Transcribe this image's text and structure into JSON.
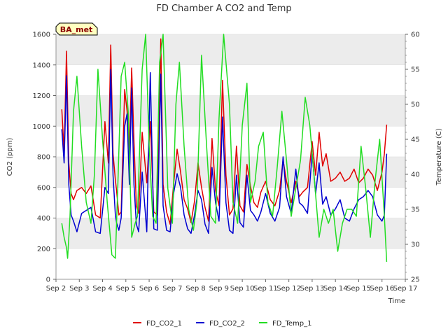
{
  "chart_data": {
    "type": "line",
    "title": "FD Chamber A CO2 and Temp",
    "badge": "BA_met",
    "xlabel": "Time",
    "ylabel": "CO2 (ppm)",
    "y2label": "Temperature (C)",
    "xlim": [
      2,
      17
    ],
    "ylim": [
      0,
      1600
    ],
    "y2lim": [
      25,
      60
    ],
    "x_ticks": [
      2,
      3,
      4,
      5,
      6,
      7,
      8,
      9,
      10,
      11,
      12,
      13,
      14,
      15,
      16,
      17
    ],
    "x_tick_labels": [
      "Sep 2",
      "Sep 3",
      "Sep 4",
      "Sep 5",
      "Sep 6",
      "Sep 7",
      "Sep 8",
      "Sep 9",
      "Sep 10",
      "Sep 11",
      "Sep 12",
      "Sep 13",
      "Sep 14",
      "Sep 15",
      "Sep 16",
      "Sep 17"
    ],
    "y_ticks": [
      0,
      200,
      400,
      600,
      800,
      1000,
      1200,
      1400,
      1600
    ],
    "y2_ticks": [
      25,
      30,
      35,
      40,
      45,
      50,
      55,
      60
    ],
    "grid": "horizontal bands",
    "legend_position": "bottom-center",
    "colors": {
      "FD_CO2_1": "#e00000",
      "FD_CO2_2": "#0000d0",
      "FD_Temp_1": "#22dd22",
      "band": "#ececec",
      "badge_fill": "#ffffc0"
    },
    "series": [
      {
        "name": "FD_CO2_1",
        "axis": "left",
        "x": [
          2.25,
          2.35,
          2.45,
          2.55,
          2.65,
          2.75,
          2.9,
          3.1,
          3.3,
          3.5,
          3.7,
          3.9,
          4.1,
          4.25,
          4.35,
          4.45,
          4.55,
          4.6,
          4.7,
          4.8,
          4.95,
          5.05,
          5.15,
          5.25,
          5.35,
          5.45,
          5.55,
          5.7,
          5.9,
          6.05,
          6.2,
          6.35,
          6.5,
          6.6,
          6.75,
          6.9,
          7.05,
          7.2,
          7.35,
          7.5,
          7.65,
          7.8,
          7.95,
          8.1,
          8.25,
          8.4,
          8.55,
          8.7,
          8.85,
          9.0,
          9.15,
          9.3,
          9.45,
          9.6,
          9.75,
          9.9,
          10.05,
          10.2,
          10.35,
          10.5,
          10.65,
          10.8,
          11.0,
          11.2,
          11.4,
          11.6,
          11.75,
          11.9,
          12.1,
          12.3,
          12.45,
          12.6,
          12.8,
          13.0,
          13.15,
          13.3,
          13.45,
          13.6,
          13.8,
          14.0,
          14.2,
          14.4,
          14.6,
          14.8,
          15.0,
          15.2,
          15.4,
          15.6,
          15.8,
          16.0,
          16.1,
          16.2
        ],
        "values": [
          1110,
          830,
          1490,
          760,
          560,
          520,
          580,
          600,
          560,
          610,
          420,
          400,
          1030,
          760,
          1530,
          820,
          650,
          580,
          420,
          440,
          1240,
          1100,
          840,
          1380,
          900,
          480,
          430,
          960,
          630,
          1030,
          440,
          420,
          1570,
          620,
          440,
          360,
          620,
          850,
          700,
          520,
          460,
          370,
          510,
          760,
          600,
          470,
          380,
          920,
          580,
          480,
          1300,
          680,
          420,
          460,
          870,
          480,
          440,
          750,
          610,
          500,
          470,
          570,
          640,
          520,
          480,
          580,
          780,
          640,
          500,
          640,
          540,
          570,
          600,
          900,
          680,
          960,
          740,
          820,
          640,
          660,
          700,
          640,
          660,
          720,
          630,
          660,
          720,
          680,
          580,
          700,
          820,
          1010
        ]
      },
      {
        "name": "FD_CO2_2",
        "axis": "left",
        "x": [
          2.25,
          2.35,
          2.45,
          2.55,
          2.65,
          2.75,
          2.9,
          3.1,
          3.3,
          3.5,
          3.7,
          3.9,
          4.1,
          4.25,
          4.35,
          4.45,
          4.55,
          4.6,
          4.7,
          4.8,
          4.95,
          5.05,
          5.15,
          5.25,
          5.35,
          5.45,
          5.55,
          5.7,
          5.9,
          6.05,
          6.2,
          6.35,
          6.5,
          6.6,
          6.75,
          6.9,
          7.05,
          7.2,
          7.35,
          7.5,
          7.65,
          7.8,
          7.95,
          8.1,
          8.25,
          8.4,
          8.55,
          8.7,
          8.85,
          9.0,
          9.15,
          9.3,
          9.45,
          9.6,
          9.75,
          9.9,
          10.05,
          10.2,
          10.35,
          10.5,
          10.65,
          10.8,
          11.0,
          11.2,
          11.4,
          11.6,
          11.75,
          11.9,
          12.1,
          12.3,
          12.45,
          12.6,
          12.8,
          13.0,
          13.15,
          13.3,
          13.45,
          13.6,
          13.8,
          14.0,
          14.2,
          14.4,
          14.6,
          14.8,
          15.0,
          15.2,
          15.4,
          15.6,
          15.8,
          16.0,
          16.1,
          16.2
        ],
        "values": [
          980,
          760,
          1330,
          620,
          420,
          380,
          310,
          430,
          450,
          470,
          310,
          300,
          600,
          560,
          1370,
          680,
          420,
          370,
          320,
          400,
          1000,
          1080,
          620,
          1250,
          620,
          360,
          310,
          700,
          310,
          1350,
          330,
          320,
          1340,
          480,
          320,
          310,
          560,
          690,
          600,
          420,
          330,
          300,
          420,
          580,
          520,
          360,
          300,
          730,
          500,
          380,
          1060,
          500,
          320,
          300,
          680,
          370,
          340,
          680,
          450,
          420,
          380,
          440,
          560,
          430,
          380,
          470,
          800,
          540,
          430,
          720,
          500,
          480,
          430,
          820,
          560,
          760,
          490,
          540,
          420,
          460,
          520,
          400,
          380,
          460,
          520,
          540,
          580,
          540,
          420,
          380,
          420,
          820
        ]
      },
      {
        "name": "FD_Temp_1",
        "axis": "right",
        "x": [
          2.25,
          2.35,
          2.45,
          2.5,
          2.6,
          2.75,
          2.9,
          3.1,
          3.3,
          3.5,
          3.65,
          3.8,
          4.0,
          4.2,
          4.4,
          4.55,
          4.65,
          4.8,
          4.95,
          5.1,
          5.25,
          5.4,
          5.5,
          5.7,
          5.85,
          6.0,
          6.15,
          6.3,
          6.45,
          6.6,
          6.8,
          7.0,
          7.15,
          7.3,
          7.5,
          7.7,
          7.9,
          8.05,
          8.25,
          8.45,
          8.65,
          8.85,
          9.0,
          9.2,
          9.45,
          9.6,
          9.8,
          10.0,
          10.2,
          10.35,
          10.55,
          10.7,
          10.9,
          11.1,
          11.3,
          11.5,
          11.7,
          11.9,
          12.1,
          12.3,
          12.5,
          12.7,
          12.9,
          13.1,
          13.3,
          13.5,
          13.7,
          13.9,
          14.1,
          14.3,
          14.5,
          14.7,
          14.9,
          15.1,
          15.3,
          15.5,
          15.7,
          15.9,
          16.1,
          16.2
        ],
        "values": [
          33,
          31,
          29.5,
          28,
          34,
          49,
          54,
          44,
          36,
          33,
          40,
          55,
          45,
          36,
          28.5,
          28,
          38,
          54,
          56,
          49,
          31,
          33,
          34,
          55,
          60,
          44,
          34,
          33,
          56,
          60,
          38,
          33,
          50,
          56,
          44,
          35,
          32,
          36,
          57,
          45,
          34,
          33,
          48,
          60,
          50,
          36,
          33,
          47,
          53,
          36,
          39,
          44,
          46,
          36,
          34,
          41,
          49,
          42,
          34,
          38,
          42,
          51,
          47,
          39,
          31,
          35,
          33,
          35,
          29,
          33,
          35,
          35,
          34,
          44,
          38,
          31,
          39,
          45,
          34,
          27.5
        ]
      }
    ]
  }
}
